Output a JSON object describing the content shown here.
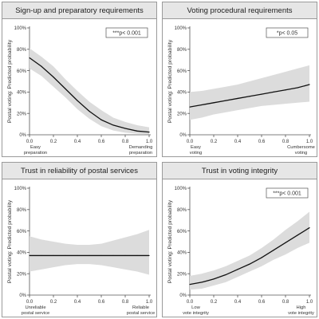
{
  "chart_data": [
    {
      "type": "line",
      "title": "Sign-up and preparatory requirements",
      "ylabel": "Postal voting: Predicted probability",
      "xlim": [
        0,
        1
      ],
      "ylim": [
        0,
        1
      ],
      "x_ticks": [
        "0.0",
        "0.2",
        "0.4",
        "0.6",
        "0.8",
        "1.0"
      ],
      "y_ticks": [
        "0%",
        "20%",
        "40%",
        "60%",
        "80%",
        "100%"
      ],
      "x_end_labels": {
        "left": [
          "Easy",
          "preparation"
        ],
        "right": [
          "Demanding",
          "preparation"
        ]
      },
      "significance": "***p< 0.001",
      "x": [
        0.0,
        0.1,
        0.2,
        0.3,
        0.4,
        0.5,
        0.6,
        0.7,
        0.8,
        0.9,
        1.0
      ],
      "y": [
        0.72,
        0.64,
        0.54,
        0.43,
        0.32,
        0.22,
        0.14,
        0.09,
        0.06,
        0.035,
        0.025
      ],
      "ci_lower": [
        0.62,
        0.55,
        0.45,
        0.35,
        0.24,
        0.15,
        0.08,
        0.04,
        0.02,
        0.01,
        0.005
      ],
      "ci_upper": [
        0.81,
        0.73,
        0.64,
        0.52,
        0.41,
        0.31,
        0.23,
        0.16,
        0.12,
        0.09,
        0.07
      ]
    },
    {
      "type": "line",
      "title": "Voting procedural requirements",
      "ylabel": "Postal voting: Predicted probability",
      "xlim": [
        0,
        1
      ],
      "ylim": [
        0,
        1
      ],
      "x_ticks": [
        "0.0",
        "0.2",
        "0.4",
        "0.6",
        "0.8",
        "1.0"
      ],
      "y_ticks": [
        "0%",
        "20%",
        "40%",
        "60%",
        "80%",
        "100%"
      ],
      "x_end_labels": {
        "left": [
          "Easy",
          "voting"
        ],
        "right": [
          "Cumbersome",
          "voting"
        ]
      },
      "significance": "*p< 0.05",
      "x": [
        0.0,
        0.1,
        0.2,
        0.3,
        0.4,
        0.5,
        0.6,
        0.7,
        0.8,
        0.9,
        1.0
      ],
      "y": [
        0.26,
        0.28,
        0.3,
        0.32,
        0.34,
        0.36,
        0.38,
        0.4,
        0.42,
        0.44,
        0.47
      ],
      "ci_lower": [
        0.14,
        0.16,
        0.19,
        0.21,
        0.23,
        0.25,
        0.27,
        0.28,
        0.29,
        0.3,
        0.31
      ],
      "ci_upper": [
        0.4,
        0.41,
        0.43,
        0.45,
        0.47,
        0.5,
        0.53,
        0.56,
        0.59,
        0.62,
        0.65
      ]
    },
    {
      "type": "line",
      "title": "Trust in reliability of postal services",
      "ylabel": "Postal voting: Predicted probability",
      "xlim": [
        0,
        1
      ],
      "ylim": [
        0,
        1
      ],
      "x_ticks": [
        "0.0",
        "0.2",
        "0.4",
        "0.6",
        "0.8",
        "1.0"
      ],
      "y_ticks": [
        "0%",
        "20%",
        "40%",
        "60%",
        "80%",
        "100%"
      ],
      "x_end_labels": {
        "left": [
          "Unreliable",
          "postal service"
        ],
        "right": [
          "Reliable",
          "postal service"
        ]
      },
      "significance": "",
      "x": [
        0.0,
        0.1,
        0.2,
        0.3,
        0.4,
        0.5,
        0.6,
        0.7,
        0.8,
        0.9,
        1.0
      ],
      "y": [
        0.37,
        0.37,
        0.37,
        0.37,
        0.37,
        0.37,
        0.37,
        0.37,
        0.37,
        0.37,
        0.37
      ],
      "ci_lower": [
        0.22,
        0.24,
        0.26,
        0.28,
        0.29,
        0.29,
        0.28,
        0.26,
        0.24,
        0.22,
        0.19
      ],
      "ci_upper": [
        0.55,
        0.52,
        0.5,
        0.48,
        0.47,
        0.47,
        0.48,
        0.51,
        0.54,
        0.57,
        0.61
      ]
    },
    {
      "type": "line",
      "title": "Trust in voting integrity",
      "ylabel": "Postal voting: Predicted probability",
      "xlim": [
        0,
        1
      ],
      "ylim": [
        0,
        1
      ],
      "x_ticks": [
        "0.0",
        "0.2",
        "0.4",
        "0.6",
        "0.8",
        "1.0"
      ],
      "y_ticks": [
        "0%",
        "20%",
        "40%",
        "60%",
        "80%",
        "100%"
      ],
      "x_end_labels": {
        "left": [
          "Low",
          "vote integrity"
        ],
        "right": [
          "High",
          "vote integrity"
        ]
      },
      "significance": "***p< 0.001",
      "x": [
        0.0,
        0.1,
        0.2,
        0.3,
        0.4,
        0.5,
        0.6,
        0.7,
        0.8,
        0.9,
        1.0
      ],
      "y": [
        0.1,
        0.12,
        0.15,
        0.19,
        0.24,
        0.29,
        0.35,
        0.42,
        0.49,
        0.56,
        0.63
      ],
      "ci_lower": [
        0.05,
        0.06,
        0.09,
        0.12,
        0.17,
        0.22,
        0.27,
        0.33,
        0.38,
        0.44,
        0.49
      ],
      "ci_upper": [
        0.18,
        0.2,
        0.23,
        0.27,
        0.32,
        0.37,
        0.44,
        0.52,
        0.61,
        0.69,
        0.78
      ]
    }
  ]
}
